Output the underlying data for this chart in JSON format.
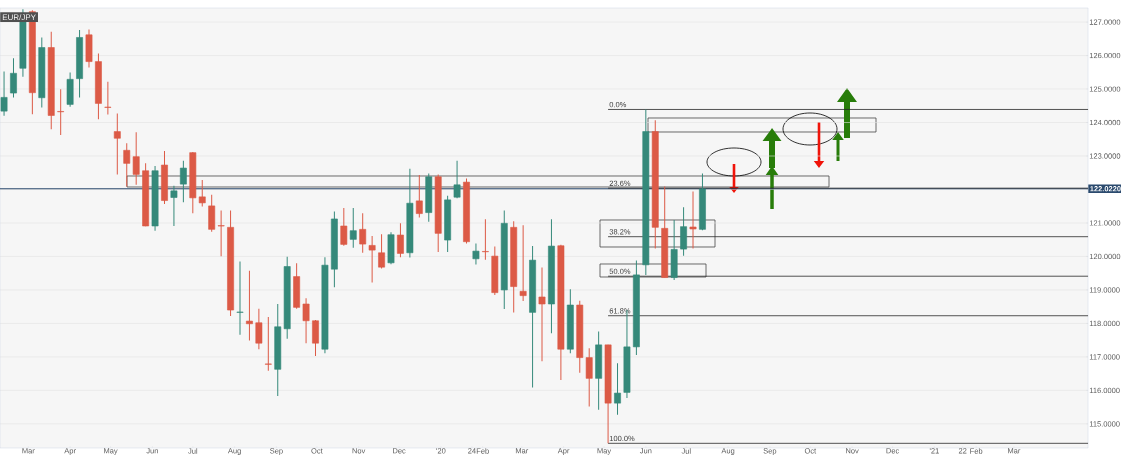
{
  "chart_data": {
    "type": "candlestick",
    "title": "EUR/JPY",
    "x": [
      "2019-02-11",
      "2019-02-18",
      "2019-02-25",
      "2019-03-04",
      "2019-03-11",
      "2019-03-18",
      "2019-03-25",
      "2019-04-01",
      "2019-04-08",
      "2019-04-15",
      "2019-04-22",
      "2019-04-29",
      "2019-05-06",
      "2019-05-13",
      "2019-05-20",
      "2019-05-27",
      "2019-06-03",
      "2019-06-10",
      "2019-06-17",
      "2019-06-24",
      "2019-07-01",
      "2019-07-08",
      "2019-07-15",
      "2019-07-22",
      "2019-07-29",
      "2019-08-05",
      "2019-08-12",
      "2019-08-19",
      "2019-08-26",
      "2019-09-02",
      "2019-09-09",
      "2019-09-16",
      "2019-09-23",
      "2019-09-30",
      "2019-10-07",
      "2019-10-14",
      "2019-10-21",
      "2019-10-28",
      "2019-11-04",
      "2019-11-11",
      "2019-11-18",
      "2019-11-25",
      "2019-12-02",
      "2019-12-09",
      "2019-12-16",
      "2019-12-23",
      "2019-12-30",
      "2020-01-06",
      "2020-01-13",
      "2020-01-20",
      "2020-01-27",
      "2020-02-03",
      "2020-02-10",
      "2020-02-17",
      "2020-02-24",
      "2020-03-02",
      "2020-03-09",
      "2020-03-16",
      "2020-03-23",
      "2020-03-30",
      "2020-04-06",
      "2020-04-13",
      "2020-04-20",
      "2020-04-27",
      "2020-05-04",
      "2020-05-11",
      "2020-05-18",
      "2020-05-25",
      "2020-06-01",
      "2020-06-08",
      "2020-06-15",
      "2020-06-22",
      "2020-06-29",
      "2020-07-06",
      "2020-07-13"
    ],
    "ohlc": [
      [
        124.34,
        125.52,
        124.2,
        124.75
      ],
      [
        124.88,
        125.92,
        124.75,
        125.47
      ],
      [
        125.62,
        127.38,
        125.37,
        127.26
      ],
      [
        127.31,
        127.35,
        124.25,
        124.89
      ],
      [
        124.74,
        126.54,
        124.45,
        126.24
      ],
      [
        126.24,
        126.71,
        123.8,
        124.21
      ],
      [
        124.33,
        124.99,
        123.63,
        124.32
      ],
      [
        124.54,
        125.49,
        124.47,
        125.29
      ],
      [
        125.31,
        126.76,
        124.75,
        126.54
      ],
      [
        126.62,
        126.78,
        125.64,
        125.82
      ],
      [
        125.82,
        126.06,
        124.1,
        124.57
      ],
      [
        124.46,
        125.22,
        124.24,
        124.45
      ],
      [
        123.73,
        124.27,
        122.45,
        123.53
      ],
      [
        123.17,
        123.38,
        122.09,
        122.78
      ],
      [
        122.98,
        123.71,
        122.14,
        122.45
      ],
      [
        122.56,
        122.78,
        120.9,
        120.91
      ],
      [
        120.91,
        122.7,
        120.77,
        122.56
      ],
      [
        122.73,
        123.15,
        121.57,
        121.67
      ],
      [
        121.76,
        122.11,
        120.91,
        121.96
      ],
      [
        122.16,
        122.86,
        121.62,
        122.64
      ],
      [
        123.1,
        123.12,
        121.29,
        121.75
      ],
      [
        121.78,
        122.28,
        121.49,
        121.6
      ],
      [
        121.51,
        121.84,
        120.74,
        120.81
      ],
      [
        120.92,
        121.37,
        120.01,
        120.91
      ],
      [
        120.87,
        121.37,
        118.22,
        118.4
      ],
      [
        118.33,
        119.85,
        117.66,
        118.34
      ],
      [
        118.07,
        119.57,
        117.49,
        117.99
      ],
      [
        118.02,
        118.44,
        117.23,
        117.41
      ],
      [
        116.79,
        118.19,
        116.59,
        116.78
      ],
      [
        116.63,
        118.58,
        115.83,
        117.9
      ],
      [
        117.84,
        119.99,
        117.54,
        119.7
      ],
      [
        119.4,
        119.8,
        118.44,
        118.48
      ],
      [
        118.58,
        118.75,
        117.41,
        118.08
      ],
      [
        118.08,
        118.1,
        117.03,
        117.41
      ],
      [
        117.23,
        119.98,
        117.11,
        119.74
      ],
      [
        119.62,
        121.34,
        119.08,
        121.12
      ],
      [
        120.91,
        121.45,
        120.32,
        120.36
      ],
      [
        120.51,
        121.45,
        120.26,
        120.77
      ],
      [
        120.81,
        121.29,
        120.11,
        120.37
      ],
      [
        120.33,
        120.61,
        119.22,
        120.19
      ],
      [
        120.11,
        120.66,
        119.64,
        119.68
      ],
      [
        119.81,
        120.72,
        119.77,
        120.65
      ],
      [
        120.64,
        120.99,
        119.98,
        120.09
      ],
      [
        120.11,
        122.62,
        119.97,
        121.59
      ],
      [
        121.66,
        122.43,
        121.16,
        121.28
      ],
      [
        121.31,
        122.48,
        121.04,
        122.38
      ],
      [
        122.38,
        122.45,
        120.13,
        120.69
      ],
      [
        120.49,
        121.81,
        120.13,
        121.69
      ],
      [
        121.77,
        122.86,
        121.74,
        122.14
      ],
      [
        122.22,
        122.33,
        120.39,
        120.44
      ],
      [
        119.93,
        120.39,
        119.76,
        120.16
      ],
      [
        120.15,
        121.11,
        119.9,
        120.14
      ],
      [
        120.01,
        120.3,
        118.85,
        118.92
      ],
      [
        119.0,
        121.37,
        118.43,
        120.99
      ],
      [
        120.87,
        121.05,
        118.33,
        119.1
      ],
      [
        118.96,
        120.93,
        118.67,
        118.83
      ],
      [
        118.33,
        120.31,
        116.09,
        119.89
      ],
      [
        118.79,
        119.67,
        116.87,
        118.58
      ],
      [
        118.58,
        121.11,
        117.71,
        120.31
      ],
      [
        120.32,
        120.35,
        116.31,
        117.23
      ],
      [
        117.23,
        119.02,
        117.11,
        118.55
      ],
      [
        118.55,
        118.68,
        116.53,
        116.98
      ],
      [
        116.98,
        117.26,
        115.52,
        116.36
      ],
      [
        116.36,
        117.76,
        115.42,
        117.36
      ],
      [
        117.36,
        117.36,
        114.42,
        115.62
      ],
      [
        115.62,
        116.81,
        115.27,
        115.92
      ],
      [
        115.94,
        118.4,
        115.77,
        117.3
      ],
      [
        117.3,
        119.88,
        117.06,
        119.45
      ],
      [
        119.75,
        124.39,
        119.45,
        123.73
      ],
      [
        123.73,
        124.07,
        120.24,
        120.87
      ],
      [
        120.84,
        122.09,
        119.37,
        119.37
      ],
      [
        119.37,
        121.09,
        119.3,
        120.21
      ],
      [
        120.22,
        121.47,
        120.02,
        120.89
      ],
      [
        120.88,
        121.94,
        120.24,
        120.82
      ],
      [
        120.81,
        122.48,
        120.78,
        122.02
      ]
    ],
    "colors": [
      "#35897a",
      "#35897a",
      "#35897a",
      "#dc5a46",
      "#35897a",
      "#dc5a46",
      "#dc5a46",
      "#35897a",
      "#35897a",
      "#dc5a46",
      "#dc5a46",
      "#dc5a46",
      "#dc5a46",
      "#dc5a46",
      "#dc5a46",
      "#dc5a46",
      "#35897a",
      "#dc5a46",
      "#35897a",
      "#35897a",
      "#dc5a46",
      "#dc5a46",
      "#dc5a46",
      "#dc5a46",
      "#dc5a46",
      "#35897a",
      "#dc5a46",
      "#dc5a46",
      "#dc5a46",
      "#35897a",
      "#35897a",
      "#dc5a46",
      "#dc5a46",
      "#dc5a46",
      "#35897a",
      "#35897a",
      "#dc5a46",
      "#35897a",
      "#dc5a46",
      "#dc5a46",
      "#dc5a46",
      "#35897a",
      "#dc5a46",
      "#35897a",
      "#dc5a46",
      "#35897a",
      "#dc5a46",
      "#35897a",
      "#35897a",
      "#dc5a46",
      "#35897a",
      "#dc5a46",
      "#dc5a46",
      "#35897a",
      "#dc5a46",
      "#dc5a46",
      "#35897a",
      "#dc5a46",
      "#35897a",
      "#dc5a46",
      "#35897a",
      "#dc5a46",
      "#dc5a46",
      "#35897a",
      "#dc5a46",
      "#35897a",
      "#35897a",
      "#35897a",
      "#35897a",
      "#dc5a46",
      "#dc5a46",
      "#35897a",
      "#35897a",
      "#dc5a46",
      "#35897a"
    ],
    "xlim": [
      "2019-02-08",
      "2021-04-25"
    ],
    "xticks": [
      {
        "value": "2019-03-01",
        "label": "Mar"
      },
      {
        "value": "2019-04-01",
        "label": "Apr"
      },
      {
        "value": "2019-05-01",
        "label": "May"
      },
      {
        "value": "2019-06-01",
        "label": "Jun"
      },
      {
        "value": "2019-07-01",
        "label": "Jul"
      },
      {
        "value": "2019-08-01",
        "label": "Aug"
      },
      {
        "value": "2019-09-01",
        "label": "Sep"
      },
      {
        "value": "2019-10-01",
        "label": "Oct"
      },
      {
        "value": "2019-11-01",
        "label": "Nov"
      },
      {
        "value": "2019-12-01",
        "label": "Dec"
      },
      {
        "value": "2020-01-01",
        "label": "'20"
      },
      {
        "value": "2020-01-24",
        "label": "24"
      },
      {
        "value": "2020-02-01",
        "label": "Feb"
      },
      {
        "value": "2020-03-01",
        "label": "Mar"
      },
      {
        "value": "2020-04-01",
        "label": "Apr"
      },
      {
        "value": "2020-05-01",
        "label": "May"
      },
      {
        "value": "2020-06-01",
        "label": "Jun"
      },
      {
        "value": "2020-07-01",
        "label": "Jul"
      },
      {
        "value": "2020-08-01",
        "label": "Aug"
      },
      {
        "value": "2020-09-01",
        "label": "Sep"
      },
      {
        "value": "2020-10-01",
        "label": "Oct"
      },
      {
        "value": "2020-11-01",
        "label": "Nov"
      },
      {
        "value": "2020-12-01",
        "label": "Dec"
      },
      {
        "value": "2021-01-01",
        "label": "'21"
      },
      {
        "value": "2021-01-22",
        "label": "22"
      },
      {
        "value": "2021-02-01",
        "label": "Feb"
      },
      {
        "value": "2021-03-01",
        "label": "Mar"
      }
    ],
    "ylim": [
      114.28,
      127.42
    ],
    "yticks": [
      {
        "value": 115,
        "label": "115.0000"
      },
      {
        "value": 116,
        "label": "116.0000"
      },
      {
        "value": 117,
        "label": "117.0000"
      },
      {
        "value": 118,
        "label": "118.0000"
      },
      {
        "value": 119,
        "label": "119.0000"
      },
      {
        "value": 120,
        "label": "120.0000"
      },
      {
        "value": 121,
        "label": "121.0000"
      },
      {
        "value": 122,
        "label": null
      },
      {
        "value": 123,
        "label": "123.0000"
      },
      {
        "value": 124,
        "label": "124.0000"
      },
      {
        "value": 125,
        "label": "125.0000"
      },
      {
        "value": 126,
        "label": "126.0000"
      },
      {
        "value": 127,
        "label": "127.0000"
      }
    ],
    "grid": "y",
    "ref_lines": [
      {
        "axis": "y",
        "value": 122.022,
        "label": "122.0220",
        "color": "#2b4a6e"
      },
      {
        "axis": "y",
        "value": 124.39
      },
      {
        "axis": "y",
        "value": 122.04
      },
      {
        "axis": "y",
        "value": 120.59
      },
      {
        "axis": "y",
        "value": 119.41
      },
      {
        "axis": "y",
        "value": 118.23
      },
      {
        "axis": "y",
        "value": 114.42
      }
    ],
    "annotations": [
      "0.0%",
      "23.6%",
      "38.2%",
      "50.0%",
      "61.8%",
      "100.0%"
    ]
  }
}
